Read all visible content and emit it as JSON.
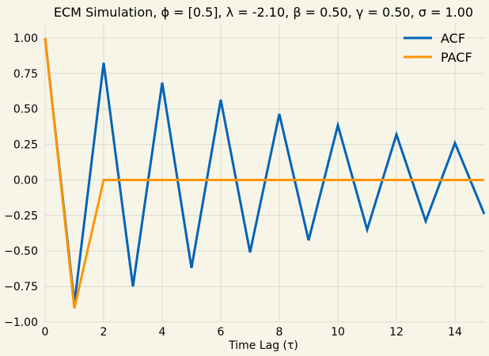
{
  "chart_data": {
    "type": "line",
    "title": "ECM Simulation, ϕ = [0.5], λ = -2.10, β = 0.50, γ = 0.50, σ = 1.00",
    "xlabel": "Time Lag (τ)",
    "ylabel": "",
    "xlim": [
      0,
      15
    ],
    "ylim": [
      -1.0,
      1.1
    ],
    "xticks": [
      0,
      2,
      4,
      6,
      8,
      10,
      12,
      14
    ],
    "xtick_labels": [
      "0",
      "2",
      "4",
      "6",
      "8",
      "10",
      "12",
      "14"
    ],
    "yticks": [
      -1.0,
      -0.75,
      -0.5,
      -0.25,
      0.0,
      0.25,
      0.5,
      0.75,
      1.0
    ],
    "ytick_labels": [
      "−1.00",
      "−0.75",
      "−0.50",
      "−0.25",
      "0.00",
      "0.25",
      "0.50",
      "0.75",
      "1.00"
    ],
    "grid": true,
    "legend_position": "top-right",
    "x": [
      0,
      1,
      2,
      3,
      4,
      5,
      6,
      7,
      8,
      9,
      10,
      11,
      12,
      13,
      14,
      15
    ],
    "series": [
      {
        "name": "ACF",
        "color": "#0063b8",
        "values": [
          1.0,
          -0.87,
          0.825,
          -0.75,
          0.685,
          -0.62,
          0.565,
          -0.51,
          0.465,
          -0.425,
          0.385,
          -0.35,
          0.32,
          -0.29,
          0.26,
          -0.24
        ]
      },
      {
        "name": "PACF",
        "color": "#ff9500",
        "values": [
          1.0,
          -0.905,
          0.0,
          0.0,
          0.0,
          0.0,
          0.0,
          0.0,
          0.0,
          0.0,
          0.0,
          0.0,
          0.0,
          0.0,
          0.0,
          0.0
        ]
      }
    ]
  }
}
